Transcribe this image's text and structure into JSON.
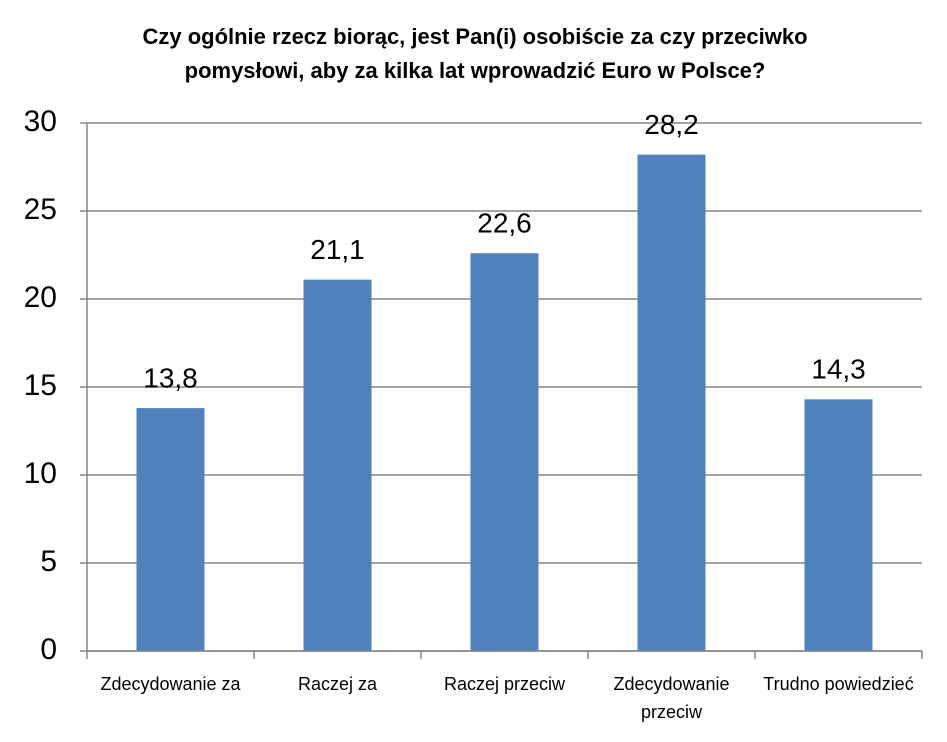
{
  "chart_data": {
    "type": "bar",
    "title": "Czy ogólnie rzecz biorąc, jest Pan(i) osobiście za czy przeciwko pomysłowi, aby za kilka lat wprowadzić Euro w Polsce?",
    "categories": [
      "Zdecydowanie za",
      "Raczej za",
      "Raczej przeciw",
      "Zdecydowanie przeciw",
      "Trudno powiedzieć"
    ],
    "values": [
      13.8,
      21.1,
      22.6,
      28.2,
      14.3
    ],
    "value_labels": [
      "13,8",
      "21,1",
      "22,6",
      "28,2",
      "14,3"
    ],
    "color": "#4f81bd",
    "ylim": [
      0,
      30
    ],
    "yticks": [
      0,
      5,
      10,
      15,
      20,
      25,
      30
    ],
    "grid": true
  }
}
